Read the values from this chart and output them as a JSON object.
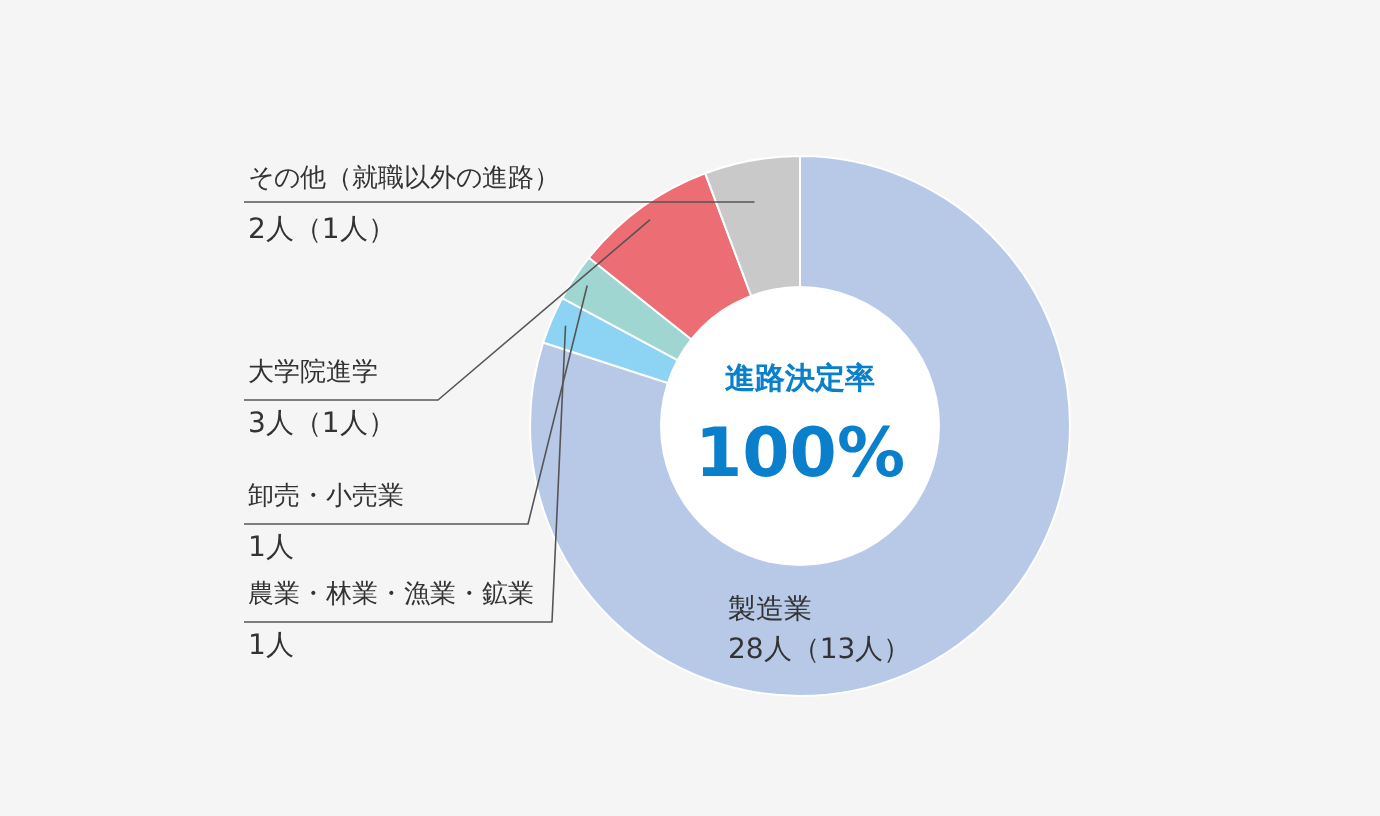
{
  "chart_data": {
    "type": "donut",
    "categories": [
      "製造業",
      "農業・林業・漁業・鉱業",
      "卸売・小売業",
      "大学院進学",
      "その他（就職以外の進路）"
    ],
    "values": [
      28,
      1,
      1,
      3,
      2
    ],
    "colors": [
      "#b8c9e8",
      "#8dd3f3",
      "#9fd6d2",
      "#ec6d74",
      "#c9c9ca"
    ],
    "value_labels": [
      "28人（13人）",
      "1人",
      "1人",
      "3人（1人）",
      "2人（1人）"
    ],
    "annotations": [
      "進路決定率",
      "100%"
    ]
  }
}
